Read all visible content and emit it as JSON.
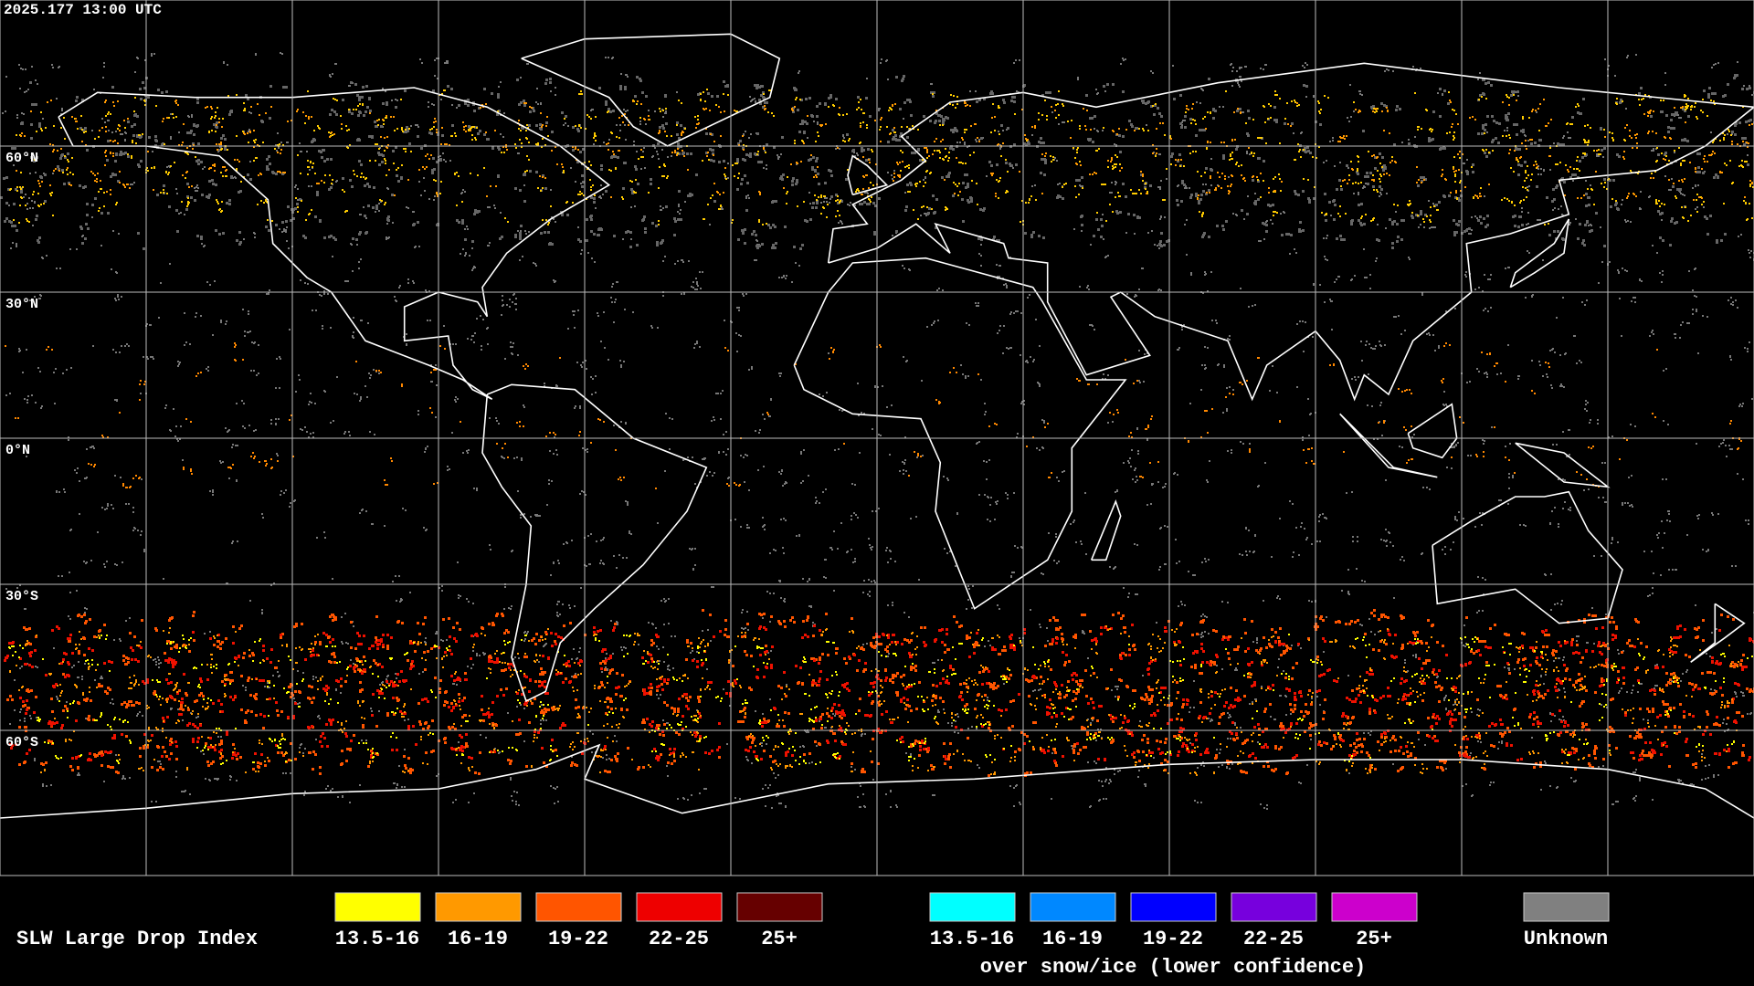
{
  "header": {
    "timestamp": "2025.177 13:00 UTC"
  },
  "map": {
    "latitude_labels": [
      "60°N",
      "30°N",
      "0°N",
      "30°S",
      "60°S"
    ]
  },
  "legend": {
    "title": "SLW Large Drop Index",
    "groups": [
      {
        "items": [
          {
            "label": "13.5-16",
            "color": "#ffff00"
          },
          {
            "label": "16-19",
            "color": "#ff9900"
          },
          {
            "label": "19-22",
            "color": "#ff5500"
          },
          {
            "label": "22-25",
            "color": "#ee0000"
          },
          {
            "label": "25+",
            "color": "#660000"
          }
        ]
      },
      {
        "items": [
          {
            "label": "13.5-16",
            "color": "#00ffff"
          },
          {
            "label": "16-19",
            "color": "#0088ff"
          },
          {
            "label": "19-22",
            "color": "#0000ff"
          },
          {
            "label": "22-25",
            "color": "#7700dd"
          },
          {
            "label": "25+",
            "color": "#cc00cc"
          }
        ],
        "caption": "over snow/ice (lower confidence)"
      },
      {
        "items": [
          {
            "label": "Unknown",
            "color": "#808080"
          }
        ]
      }
    ]
  }
}
